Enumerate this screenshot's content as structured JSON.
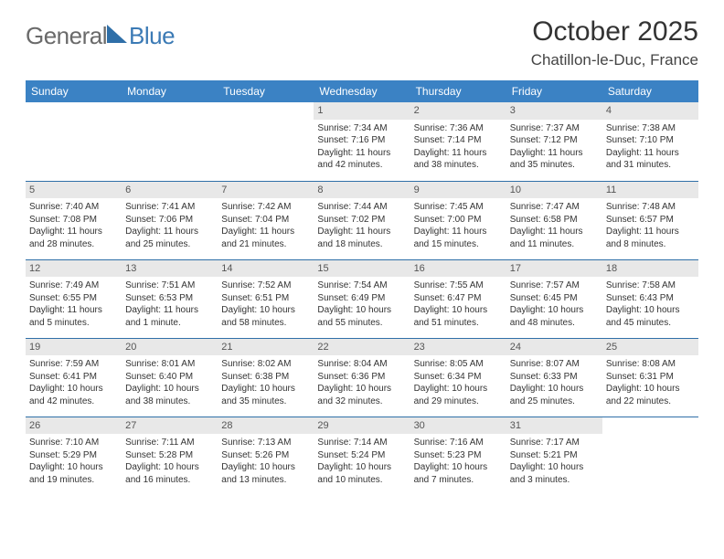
{
  "logo": {
    "text1": "General",
    "text2": "Blue"
  },
  "title": "October 2025",
  "location": "Chatillon-le-Duc, France",
  "day_headers": [
    "Sunday",
    "Monday",
    "Tuesday",
    "Wednesday",
    "Thursday",
    "Friday",
    "Saturday"
  ],
  "colors": {
    "header_bg": "#3b82c4",
    "header_fg": "#ffffff",
    "rule": "#2f6fa8",
    "daynum_bg": "#e8e8e8",
    "logo_gray": "#6a6a6a",
    "logo_blue": "#3b7ab5"
  },
  "weeks": [
    [
      null,
      null,
      null,
      {
        "n": "1",
        "sr": "Sunrise: 7:34 AM",
        "ss": "Sunset: 7:16 PM",
        "dl": "Daylight: 11 hours and 42 minutes."
      },
      {
        "n": "2",
        "sr": "Sunrise: 7:36 AM",
        "ss": "Sunset: 7:14 PM",
        "dl": "Daylight: 11 hours and 38 minutes."
      },
      {
        "n": "3",
        "sr": "Sunrise: 7:37 AM",
        "ss": "Sunset: 7:12 PM",
        "dl": "Daylight: 11 hours and 35 minutes."
      },
      {
        "n": "4",
        "sr": "Sunrise: 7:38 AM",
        "ss": "Sunset: 7:10 PM",
        "dl": "Daylight: 11 hours and 31 minutes."
      }
    ],
    [
      {
        "n": "5",
        "sr": "Sunrise: 7:40 AM",
        "ss": "Sunset: 7:08 PM",
        "dl": "Daylight: 11 hours and 28 minutes."
      },
      {
        "n": "6",
        "sr": "Sunrise: 7:41 AM",
        "ss": "Sunset: 7:06 PM",
        "dl": "Daylight: 11 hours and 25 minutes."
      },
      {
        "n": "7",
        "sr": "Sunrise: 7:42 AM",
        "ss": "Sunset: 7:04 PM",
        "dl": "Daylight: 11 hours and 21 minutes."
      },
      {
        "n": "8",
        "sr": "Sunrise: 7:44 AM",
        "ss": "Sunset: 7:02 PM",
        "dl": "Daylight: 11 hours and 18 minutes."
      },
      {
        "n": "9",
        "sr": "Sunrise: 7:45 AM",
        "ss": "Sunset: 7:00 PM",
        "dl": "Daylight: 11 hours and 15 minutes."
      },
      {
        "n": "10",
        "sr": "Sunrise: 7:47 AM",
        "ss": "Sunset: 6:58 PM",
        "dl": "Daylight: 11 hours and 11 minutes."
      },
      {
        "n": "11",
        "sr": "Sunrise: 7:48 AM",
        "ss": "Sunset: 6:57 PM",
        "dl": "Daylight: 11 hours and 8 minutes."
      }
    ],
    [
      {
        "n": "12",
        "sr": "Sunrise: 7:49 AM",
        "ss": "Sunset: 6:55 PM",
        "dl": "Daylight: 11 hours and 5 minutes."
      },
      {
        "n": "13",
        "sr": "Sunrise: 7:51 AM",
        "ss": "Sunset: 6:53 PM",
        "dl": "Daylight: 11 hours and 1 minute."
      },
      {
        "n": "14",
        "sr": "Sunrise: 7:52 AM",
        "ss": "Sunset: 6:51 PM",
        "dl": "Daylight: 10 hours and 58 minutes."
      },
      {
        "n": "15",
        "sr": "Sunrise: 7:54 AM",
        "ss": "Sunset: 6:49 PM",
        "dl": "Daylight: 10 hours and 55 minutes."
      },
      {
        "n": "16",
        "sr": "Sunrise: 7:55 AM",
        "ss": "Sunset: 6:47 PM",
        "dl": "Daylight: 10 hours and 51 minutes."
      },
      {
        "n": "17",
        "sr": "Sunrise: 7:57 AM",
        "ss": "Sunset: 6:45 PM",
        "dl": "Daylight: 10 hours and 48 minutes."
      },
      {
        "n": "18",
        "sr": "Sunrise: 7:58 AM",
        "ss": "Sunset: 6:43 PM",
        "dl": "Daylight: 10 hours and 45 minutes."
      }
    ],
    [
      {
        "n": "19",
        "sr": "Sunrise: 7:59 AM",
        "ss": "Sunset: 6:41 PM",
        "dl": "Daylight: 10 hours and 42 minutes."
      },
      {
        "n": "20",
        "sr": "Sunrise: 8:01 AM",
        "ss": "Sunset: 6:40 PM",
        "dl": "Daylight: 10 hours and 38 minutes."
      },
      {
        "n": "21",
        "sr": "Sunrise: 8:02 AM",
        "ss": "Sunset: 6:38 PM",
        "dl": "Daylight: 10 hours and 35 minutes."
      },
      {
        "n": "22",
        "sr": "Sunrise: 8:04 AM",
        "ss": "Sunset: 6:36 PM",
        "dl": "Daylight: 10 hours and 32 minutes."
      },
      {
        "n": "23",
        "sr": "Sunrise: 8:05 AM",
        "ss": "Sunset: 6:34 PM",
        "dl": "Daylight: 10 hours and 29 minutes."
      },
      {
        "n": "24",
        "sr": "Sunrise: 8:07 AM",
        "ss": "Sunset: 6:33 PM",
        "dl": "Daylight: 10 hours and 25 minutes."
      },
      {
        "n": "25",
        "sr": "Sunrise: 8:08 AM",
        "ss": "Sunset: 6:31 PM",
        "dl": "Daylight: 10 hours and 22 minutes."
      }
    ],
    [
      {
        "n": "26",
        "sr": "Sunrise: 7:10 AM",
        "ss": "Sunset: 5:29 PM",
        "dl": "Daylight: 10 hours and 19 minutes."
      },
      {
        "n": "27",
        "sr": "Sunrise: 7:11 AM",
        "ss": "Sunset: 5:28 PM",
        "dl": "Daylight: 10 hours and 16 minutes."
      },
      {
        "n": "28",
        "sr": "Sunrise: 7:13 AM",
        "ss": "Sunset: 5:26 PM",
        "dl": "Daylight: 10 hours and 13 minutes."
      },
      {
        "n": "29",
        "sr": "Sunrise: 7:14 AM",
        "ss": "Sunset: 5:24 PM",
        "dl": "Daylight: 10 hours and 10 minutes."
      },
      {
        "n": "30",
        "sr": "Sunrise: 7:16 AM",
        "ss": "Sunset: 5:23 PM",
        "dl": "Daylight: 10 hours and 7 minutes."
      },
      {
        "n": "31",
        "sr": "Sunrise: 7:17 AM",
        "ss": "Sunset: 5:21 PM",
        "dl": "Daylight: 10 hours and 3 minutes."
      },
      null
    ]
  ]
}
